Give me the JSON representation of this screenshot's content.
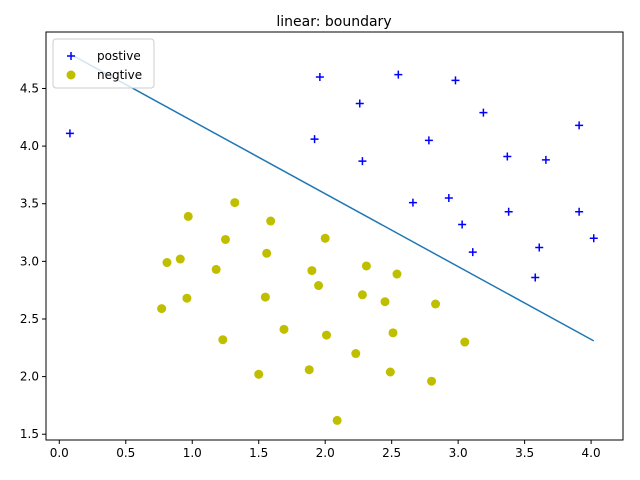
{
  "chart_data": {
    "type": "scatter",
    "title": "linear: boundary",
    "xlabel": "",
    "ylabel": "",
    "xlim": [
      -0.1,
      4.24
    ],
    "ylim": [
      1.45,
      4.99
    ],
    "xticks": [
      0.0,
      0.5,
      1.0,
      1.5,
      2.0,
      2.5,
      3.0,
      3.5,
      4.0
    ],
    "xtick_labels": [
      "0.0",
      "0.5",
      "1.0",
      "1.5",
      "2.0",
      "2.5",
      "3.0",
      "3.5",
      "4.0"
    ],
    "yticks": [
      1.5,
      2.0,
      2.5,
      3.0,
      3.5,
      4.0,
      4.5
    ],
    "ytick_labels": [
      "1.5",
      "2.0",
      "2.5",
      "3.0",
      "3.5",
      "4.0",
      "4.5"
    ],
    "grid": false,
    "legend_position": "top-left",
    "series": [
      {
        "name": "postive",
        "marker": "+",
        "color": "#0000ff",
        "x": [
          0.08,
          1.96,
          2.55,
          2.98,
          2.26,
          3.19,
          1.92,
          2.78,
          3.91,
          2.28,
          3.37,
          3.66,
          2.93,
          2.66,
          3.38,
          3.03,
          3.91,
          4.02,
          3.61,
          3.11,
          3.58
        ],
        "y": [
          4.11,
          4.6,
          4.62,
          4.57,
          4.37,
          4.29,
          4.06,
          4.05,
          4.18,
          3.87,
          3.91,
          3.88,
          3.55,
          3.51,
          3.43,
          3.32,
          3.43,
          3.2,
          3.12,
          3.08,
          2.86
        ]
      },
      {
        "name": "negtive",
        "marker": "o",
        "color": "#bfbf00",
        "x": [
          0.97,
          1.32,
          1.59,
          1.25,
          2.0,
          0.91,
          0.81,
          1.56,
          2.31,
          1.18,
          1.9,
          2.54,
          0.96,
          1.95,
          1.55,
          2.28,
          2.45,
          2.83,
          0.77,
          1.69,
          2.01,
          2.51,
          1.23,
          3.05,
          2.23,
          1.88,
          1.5,
          2.49,
          2.8,
          2.09
        ],
        "y": [
          3.39,
          3.51,
          3.35,
          3.19,
          3.2,
          3.02,
          2.99,
          3.07,
          2.96,
          2.93,
          2.92,
          2.89,
          2.68,
          2.79,
          2.69,
          2.71,
          2.65,
          2.63,
          2.59,
          2.41,
          2.36,
          2.38,
          2.32,
          2.3,
          2.2,
          2.06,
          2.02,
          2.04,
          1.96,
          1.62
        ]
      },
      {
        "name": "boundary",
        "type": "line",
        "color": "#1f77b4",
        "x": [
          0.08,
          4.02
        ],
        "y": [
          4.8,
          2.31
        ]
      }
    ]
  }
}
